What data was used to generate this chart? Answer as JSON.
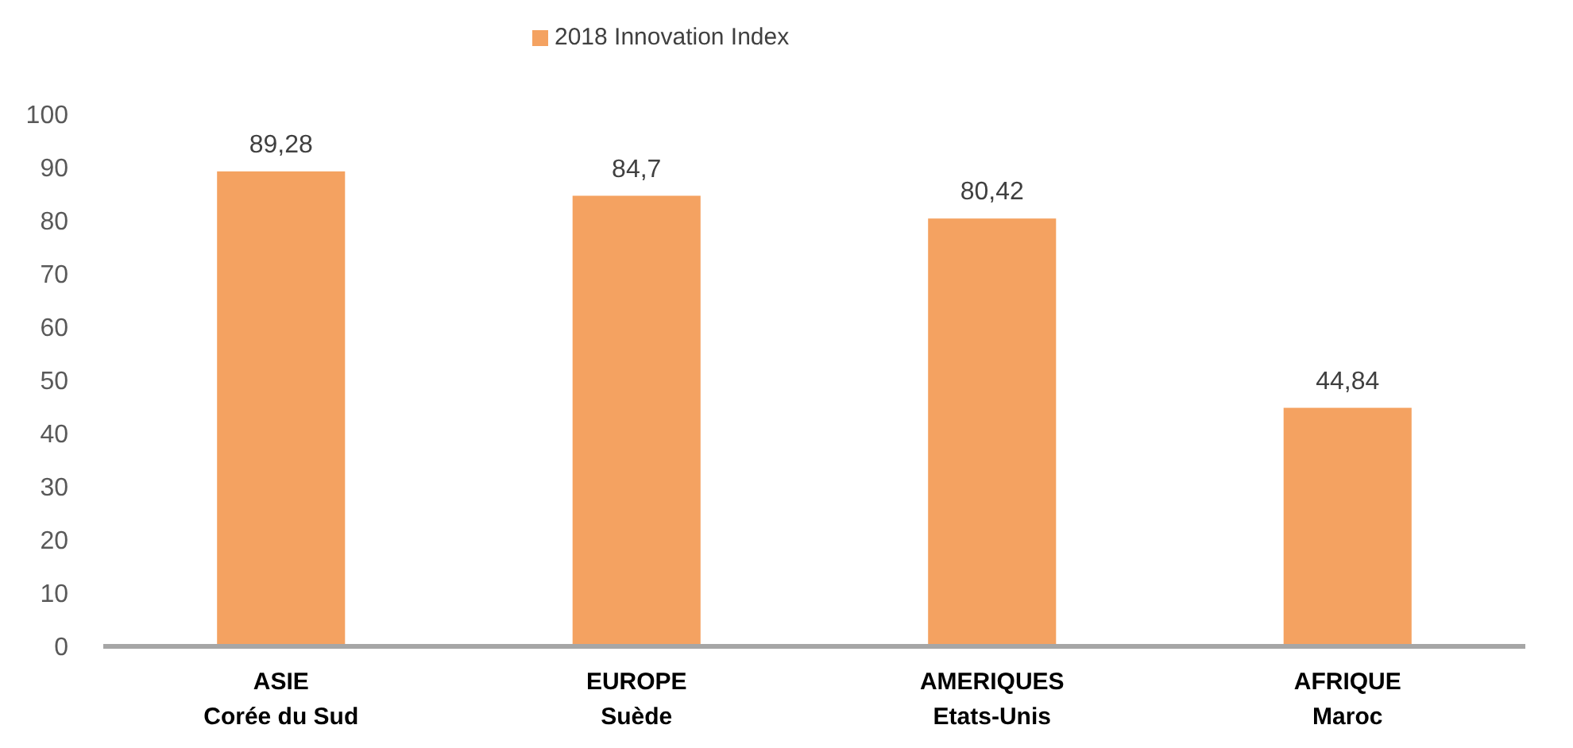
{
  "chart_data": {
    "type": "bar",
    "categories": [
      "ASIE\nCorée du Sud",
      "EUROPE\nSuède",
      "AMERIQUES\nEtats-Unis",
      "AFRIQUE\nMaroc"
    ],
    "series": [
      {
        "name": "2018 Innovation Index",
        "color": "#f4a261",
        "values": [
          89.28,
          84.7,
          80.42,
          44.84
        ],
        "value_labels": [
          "89,28",
          "84,7",
          "80,42",
          "44,84"
        ]
      }
    ],
    "ylim": [
      0,
      100
    ],
    "yticks": [
      0,
      10,
      20,
      30,
      40,
      50,
      60,
      70,
      80,
      90,
      100
    ],
    "grid": false,
    "legend": "top"
  }
}
